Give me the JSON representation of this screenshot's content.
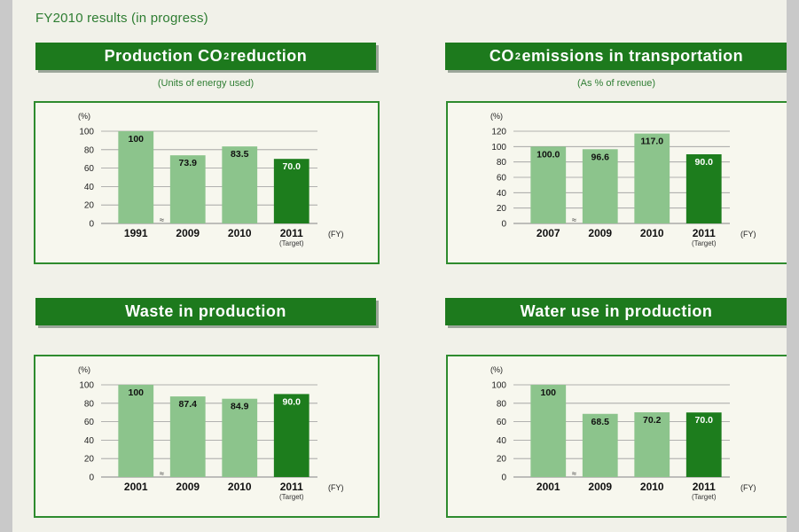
{
  "heading": "FY2010 results (in progress)",
  "colors": {
    "bar_light": "#8cc48c",
    "bar_dark": "#1d7d1d",
    "grid": "#9a9a9a",
    "text": "#222222"
  },
  "panels": [
    {
      "title_pre": "Production CO",
      "title_sub": "2",
      "title_post": " reduction",
      "subtitle": "(Units of energy used)",
      "unit": "(%)"
    },
    {
      "title_pre": "CO",
      "title_sub": "2",
      "title_post": " emissions in transportation",
      "subtitle": "(As % of revenue)",
      "unit": "(%)"
    },
    {
      "title_pre": "Waste in production",
      "title_sub": "",
      "title_post": "",
      "subtitle": "",
      "unit": "(%)"
    },
    {
      "title_pre": "Water use in production",
      "title_sub": "",
      "title_post": "",
      "subtitle": "",
      "unit": "(%)"
    }
  ],
  "chart_data": [
    {
      "type": "bar",
      "title": "Production CO2 reduction",
      "categories": [
        "1991",
        "2009",
        "2010",
        "2011"
      ],
      "values": [
        100,
        73.9,
        83.5,
        70.0
      ],
      "labels": [
        "100",
        "73.9",
        "83.5",
        "70.0"
      ],
      "target_index": 3,
      "target_label": "(Target)",
      "axis_break_label": "≈",
      "ylabel": "(%)",
      "xlabel": "(FY)",
      "ylim": [
        0,
        100
      ],
      "yticks": [
        0,
        20,
        40,
        60,
        80,
        100
      ]
    },
    {
      "type": "bar",
      "title": "CO2 emissions in transportation",
      "categories": [
        "2007",
        "2009",
        "2010",
        "2011"
      ],
      "values": [
        100.0,
        96.6,
        117.0,
        90.0
      ],
      "labels": [
        "100.0",
        "96.6",
        "117.0",
        "90.0"
      ],
      "target_index": 3,
      "target_label": "(Target)",
      "axis_break_label": "≈",
      "ylabel": "(%)",
      "xlabel": "(FY)",
      "ylim": [
        0,
        120
      ],
      "yticks": [
        0,
        20,
        40,
        60,
        80,
        100,
        120
      ]
    },
    {
      "type": "bar",
      "title": "Waste in production",
      "categories": [
        "2001",
        "2009",
        "2010",
        "2011"
      ],
      "values": [
        100,
        87.4,
        84.9,
        90.0
      ],
      "labels": [
        "100",
        "87.4",
        "84.9",
        "90.0"
      ],
      "target_index": 3,
      "target_label": "(Target)",
      "axis_break_label": "≈",
      "ylabel": "(%)",
      "xlabel": "(FY)",
      "ylim": [
        0,
        100
      ],
      "yticks": [
        0,
        20,
        40,
        60,
        80,
        100
      ]
    },
    {
      "type": "bar",
      "title": "Water use in production",
      "categories": [
        "2001",
        "2009",
        "2010",
        "2011"
      ],
      "values": [
        100,
        68.5,
        70.2,
        70.0
      ],
      "labels": [
        "100",
        "68.5",
        "70.2",
        "70.0"
      ],
      "target_index": 3,
      "target_label": "(Target)",
      "axis_break_label": "≈",
      "ylabel": "(%)",
      "xlabel": "(FY)",
      "ylim": [
        0,
        100
      ],
      "yticks": [
        0,
        20,
        40,
        60,
        80,
        100
      ]
    }
  ]
}
